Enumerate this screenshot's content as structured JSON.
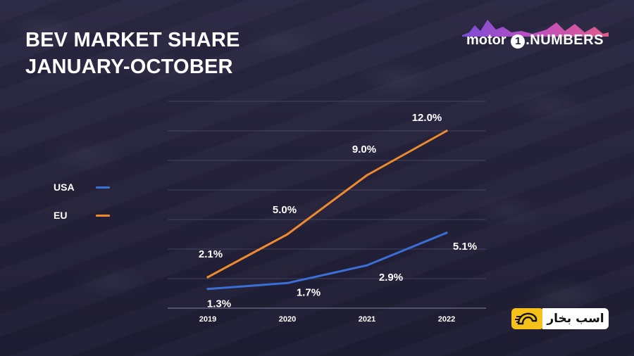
{
  "title": {
    "line1": "BEV MARKET SHARE",
    "line2": "JANUARY-OCTOBER"
  },
  "logo": {
    "word": "motor",
    "number": "1",
    "suffix": ".NUMBERS"
  },
  "badge": {
    "text": "اسب بخار"
  },
  "colors": {
    "USA": "#3b6fd6",
    "EU": "#ef8a2f",
    "grid": "#6a6883",
    "text": "#ffffff"
  },
  "chart_data": {
    "type": "line",
    "title": "BEV MARKET SHARE JANUARY-OCTOBER",
    "xlabel": "",
    "ylabel": "",
    "categories": [
      "2019",
      "2020",
      "2021",
      "2022"
    ],
    "ylim": [
      0,
      14
    ],
    "grid": true,
    "legend_position": "left",
    "series": [
      {
        "name": "USA",
        "values": [
          1.3,
          1.7,
          2.9,
          5.1
        ],
        "labels": [
          "1.3%",
          "1.7%",
          "2.9%",
          "5.1%"
        ],
        "color": "#3b6fd6"
      },
      {
        "name": "EU",
        "values": [
          2.1,
          5.0,
          9.0,
          12.0
        ],
        "labels": [
          "2.1%",
          "5.0%",
          "9.0%",
          "12.0%"
        ],
        "color": "#ef8a2f"
      }
    ]
  }
}
